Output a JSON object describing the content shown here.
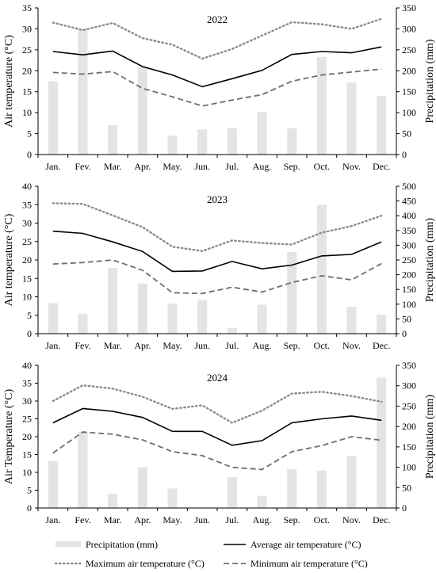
{
  "chart_data": [
    {
      "type": "bar+line",
      "title": "2022",
      "categories": [
        "Jan.",
        "Fev.",
        "Mar.",
        "Apr.",
        "May.",
        "Jun.",
        "Jul.",
        "Aug.",
        "Sep.",
        "Oct.",
        "Nov.",
        "Dec."
      ],
      "ylabel": "Air temperature (°C)",
      "ylabel_right": "Precipitation (mm)",
      "ylim": [
        0,
        35
      ],
      "ylim_right": [
        0,
        350
      ],
      "yticks": [
        "0",
        "5",
        "10",
        "15",
        "20",
        "25",
        "30",
        "35"
      ],
      "yticks_right": [
        "0",
        "50",
        "100",
        "150",
        "200",
        "250",
        "300",
        "350"
      ],
      "precipitation": [
        175,
        300,
        70,
        210,
        45,
        60,
        63,
        102,
        63,
        233,
        172,
        140
      ],
      "avg": [
        24.6,
        23.8,
        24.7,
        21.0,
        19.0,
        16.2,
        18.1,
        20.1,
        23.9,
        24.6,
        24.3,
        25.7
      ],
      "max": [
        31.5,
        29.7,
        31.4,
        27.8,
        26.2,
        22.9,
        25.2,
        28.4,
        31.6,
        31.1,
        30.0,
        32.4
      ],
      "min": [
        19.6,
        19.2,
        19.8,
        15.8,
        13.8,
        11.6,
        13.0,
        14.3,
        17.5,
        19.0,
        19.7,
        20.4
      ]
    },
    {
      "type": "bar+line",
      "title": "2023",
      "categories": [
        "Jan.",
        "Fev.",
        "Mar.",
        "Apr.",
        "May.",
        "Jun.",
        "Jul.",
        "Aug.",
        "Sep.",
        "Oct.",
        "Nov.",
        "Dec."
      ],
      "ylabel": "Air temperature (°C)",
      "ylabel_right": "Precipitation (mm)",
      "ylim": [
        0,
        40
      ],
      "ylim_right": [
        0,
        500
      ],
      "yticks": [
        "0",
        "5",
        "10",
        "15",
        "20",
        "25",
        "30",
        "35",
        "40"
      ],
      "yticks_right": [
        "0",
        "50",
        "100",
        "150",
        "200",
        "250",
        "300",
        "350",
        "400",
        "450",
        "500"
      ],
      "precipitation": [
        104,
        68,
        223,
        170,
        102,
        115,
        20,
        98,
        277,
        437,
        91,
        64
      ],
      "avg": [
        27.8,
        27.2,
        24.9,
        22.3,
        16.9,
        17.0,
        19.6,
        17.6,
        18.6,
        21.1,
        21.5,
        24.9
      ],
      "max": [
        35.4,
        35.2,
        32.1,
        28.9,
        23.6,
        22.4,
        25.3,
        24.6,
        24.2,
        27.4,
        29.2,
        32.0
      ],
      "min": [
        18.9,
        19.3,
        20.0,
        17.2,
        11.1,
        10.9,
        12.6,
        11.3,
        13.9,
        15.7,
        14.6,
        19.0
      ]
    },
    {
      "type": "bar+line",
      "title": "2024",
      "categories": [
        "Jan.",
        "Fev.",
        "Mar.",
        "Apr.",
        "May.",
        "Jun.",
        "Jul.",
        "Aug.",
        "Sep.",
        "Oct.",
        "Nov.",
        "Dec."
      ],
      "ylabel": "Air Temperature (°C)",
      "ylabel_right": "Precipitation (mm)",
      "ylim": [
        0,
        40
      ],
      "ylim_right": [
        0,
        350
      ],
      "yticks": [
        "0",
        "5",
        "10",
        "15",
        "20",
        "25",
        "30",
        "35",
        "40"
      ],
      "yticks_right": [
        "0",
        "50",
        "100",
        "150",
        "200",
        "250",
        "300",
        "350"
      ],
      "precipitation": [
        115,
        187,
        35,
        100,
        48,
        0,
        76,
        30,
        95,
        92,
        128,
        320
      ],
      "avg": [
        23.9,
        27.9,
        27.1,
        25.4,
        21.5,
        21.5,
        17.6,
        18.9,
        23.9,
        25.0,
        25.8,
        24.6
      ],
      "max": [
        30.0,
        34.4,
        33.5,
        31.2,
        27.8,
        28.8,
        23.9,
        27.3,
        32.1,
        32.6,
        31.4,
        29.8
      ],
      "min": [
        15.4,
        21.3,
        20.7,
        19.1,
        15.8,
        14.7,
        11.4,
        10.8,
        15.8,
        17.5,
        20.0,
        19.0
      ]
    }
  ],
  "legend": {
    "precipitation": "Precipitation (mm)",
    "avg": "Average air temperature (°C)",
    "max": "Maximum air temperature (°C)",
    "min": "Minimum air temperature (°C)"
  },
  "colors": {
    "precipitation": "#e4e4e4",
    "avg": "#000000",
    "max": "#8c8c8c",
    "min": "#6e6e6e"
  }
}
